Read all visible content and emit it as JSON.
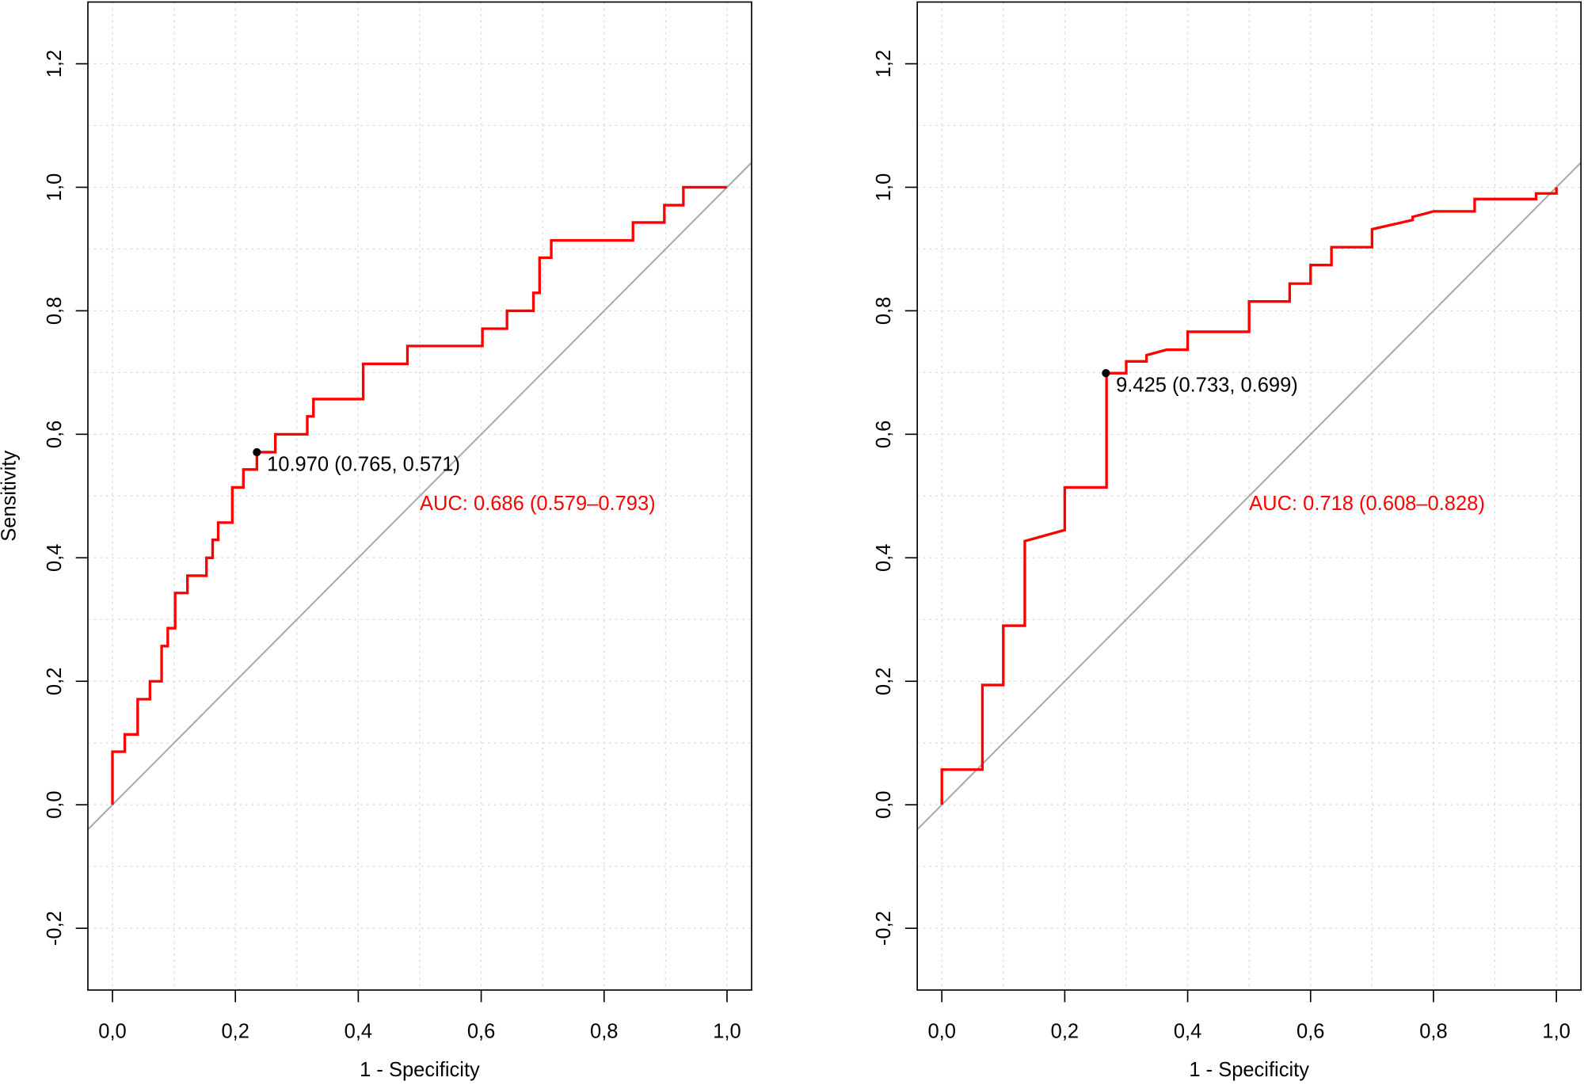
{
  "chart_data": [
    {
      "type": "line",
      "xlabel": "1 - Specificity",
      "ylabel": "Sensitivity",
      "xlim": [
        -0.04,
        1.04
      ],
      "ylim": [
        -0.3,
        1.3
      ],
      "xticks": [
        {
          "value": 0,
          "label": "0,0"
        },
        {
          "value": 0.2,
          "label": "0,2"
        },
        {
          "value": 0.4,
          "label": "0,4"
        },
        {
          "value": 0.6,
          "label": "0,6"
        },
        {
          "value": 0.8,
          "label": "0,8"
        },
        {
          "value": 1,
          "label": "1,0"
        }
      ],
      "yticks": [
        {
          "value": -0.2,
          "label": "-0,2"
        },
        {
          "value": 0,
          "label": "0,0"
        },
        {
          "value": 0.2,
          "label": "0,2"
        },
        {
          "value": 0.4,
          "label": "0,4"
        },
        {
          "value": 0.6,
          "label": "0,6"
        },
        {
          "value": 0.8,
          "label": "0,8"
        },
        {
          "value": 1,
          "label": "1,0"
        },
        {
          "value": 1.2,
          "label": "1,2"
        }
      ],
      "grid_x": [
        0,
        0.1,
        0.2,
        0.3,
        0.4,
        0.5,
        0.6,
        0.7,
        0.8,
        0.9,
        1
      ],
      "grid_y": [
        -0.2,
        -0.1,
        0,
        0.1,
        0.2,
        0.3,
        0.4,
        0.5,
        0.6,
        0.7,
        0.8,
        0.9,
        1,
        1.1,
        1.2
      ],
      "color": "#ff0000",
      "x": [
        0,
        0,
        0.02,
        0.02,
        0.041,
        0.041,
        0.061,
        0.061,
        0.08,
        0.08,
        0.09,
        0.09,
        0.102,
        0.102,
        0.122,
        0.122,
        0.153,
        0.153,
        0.163,
        0.163,
        0.172,
        0.172,
        0.195,
        0.195,
        0.213,
        0.213,
        0.235,
        0.235,
        0.265,
        0.265,
        0.317,
        0.317,
        0.327,
        0.327,
        0.408,
        0.408,
        0.48,
        0.48,
        0.602,
        0.602,
        0.642,
        0.642,
        0.685,
        0.685,
        0.695,
        0.695,
        0.714,
        0.714,
        0.847,
        0.847,
        0.898,
        0.898,
        0.929,
        0.929,
        1
      ],
      "values": [
        0,
        0.086,
        0.086,
        0.114,
        0.114,
        0.171,
        0.171,
        0.2,
        0.2,
        0.257,
        0.257,
        0.286,
        0.286,
        0.343,
        0.343,
        0.371,
        0.371,
        0.4,
        0.4,
        0.429,
        0.429,
        0.457,
        0.457,
        0.514,
        0.514,
        0.543,
        0.543,
        0.571,
        0.571,
        0.6,
        0.6,
        0.629,
        0.629,
        0.657,
        0.657,
        0.714,
        0.714,
        0.743,
        0.743,
        0.771,
        0.771,
        0.8,
        0.8,
        0.829,
        0.829,
        0.886,
        0.886,
        0.914,
        0.914,
        0.943,
        0.943,
        0.971,
        0.971,
        1,
        1
      ],
      "point": {
        "x": 0.235,
        "y": 0.571,
        "label": "10.970 (0.765, 0.571)"
      },
      "annotation": "AUC: 0.686 (0.579–0.793)"
    },
    {
      "type": "line",
      "xlabel": "1 - Specificity",
      "xlim": [
        -0.04,
        1.04
      ],
      "ylim": [
        -0.3,
        1.3
      ],
      "xticks": [
        {
          "value": 0,
          "label": "0,0"
        },
        {
          "value": 0.2,
          "label": "0,2"
        },
        {
          "value": 0.4,
          "label": "0,4"
        },
        {
          "value": 0.6,
          "label": "0,6"
        },
        {
          "value": 0.8,
          "label": "0,8"
        },
        {
          "value": 1,
          "label": "1,0"
        }
      ],
      "yticks": [
        {
          "value": -0.2,
          "label": "-0,2"
        },
        {
          "value": 0,
          "label": "0,0"
        },
        {
          "value": 0.2,
          "label": "0,2"
        },
        {
          "value": 0.4,
          "label": "0,4"
        },
        {
          "value": 0.6,
          "label": "0,6"
        },
        {
          "value": 0.8,
          "label": "0,8"
        },
        {
          "value": 1,
          "label": "1,0"
        },
        {
          "value": 1.2,
          "label": "1,2"
        }
      ],
      "grid_x": [
        0,
        0.1,
        0.2,
        0.3,
        0.4,
        0.5,
        0.6,
        0.7,
        0.8,
        0.9,
        1
      ],
      "grid_y": [
        -0.2,
        -0.1,
        0,
        0.1,
        0.2,
        0.3,
        0.4,
        0.5,
        0.6,
        0.7,
        0.8,
        0.9,
        1,
        1.1,
        1.2
      ],
      "color": "#ff0000",
      "x": [
        0,
        0,
        0.066,
        0.066,
        0.1,
        0.1,
        0.135,
        0.135,
        0.2,
        0.2,
        0.268,
        0.268,
        0.3,
        0.3,
        0.333,
        0.333,
        0.366,
        0.4,
        0.4,
        0.5,
        0.5,
        0.566,
        0.566,
        0.6,
        0.6,
        0.634,
        0.634,
        0.7,
        0.7,
        0.766,
        0.766,
        0.8,
        0.867,
        0.867,
        0.967,
        0.967,
        1,
        1
      ],
      "values": [
        0,
        0.057,
        0.057,
        0.194,
        0.194,
        0.29,
        0.29,
        0.427,
        0.445,
        0.514,
        0.514,
        0.699,
        0.699,
        0.718,
        0.718,
        0.728,
        0.737,
        0.737,
        0.766,
        0.766,
        0.815,
        0.815,
        0.844,
        0.844,
        0.874,
        0.874,
        0.903,
        0.903,
        0.932,
        0.947,
        0.952,
        0.961,
        0.961,
        0.981,
        0.981,
        0.99,
        0.99,
        1
      ],
      "point": {
        "x": 0.267,
        "y": 0.699,
        "label": "9.425 (0.733, 0.699)"
      },
      "annotation": "AUC: 0.718 (0.608–0.828)"
    }
  ]
}
